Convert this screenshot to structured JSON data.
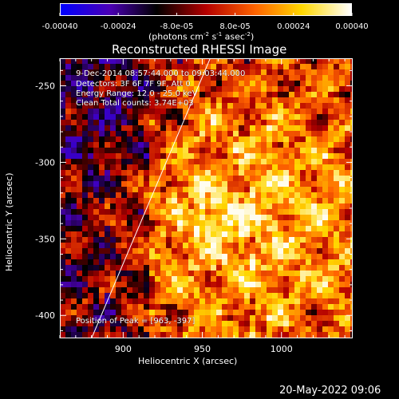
{
  "colorbar": {
    "ticks": [
      "-0.00040",
      "-0.00024",
      "-8.0e-05",
      "8.0e-05",
      "0.00024",
      "0.00040"
    ],
    "tick_values": [
      -0.0004,
      -0.00024,
      -8e-05,
      8e-05,
      0.00024,
      0.0004
    ],
    "range": [
      -0.0004,
      0.0004
    ],
    "units_prefix": "(photons cm",
    "units_exp1": "-2",
    "units_mid": " s",
    "units_exp2": "-1",
    "units_mid2": " asec",
    "units_exp3": "-2",
    "units_suffix": ")",
    "colors": [
      "#0000ff",
      "#4b00b4",
      "#000000",
      "#b40000",
      "#ff6400",
      "#ffd700",
      "#ffffff"
    ]
  },
  "title": "Reconstructed RHESSI Image",
  "annotations": {
    "time_range": "9-Dec-2014 08:57:44.000 to 09:03:44.000",
    "detectors": "Detectors: 3F 6F 7F 9F, Att 0",
    "energy": "Energy Range: 12.0 - 25.0 keV",
    "clean": "Clean     Total counts: 3.74E+03",
    "peak": "Position of Peak = [963, -397]"
  },
  "axes": {
    "xlabel": "Heliocentric X (arcsec)",
    "ylabel": "Heliocentric Y (arcsec)",
    "xticks": [
      900,
      950,
      1000
    ],
    "yticks": [
      -250,
      -300,
      -350,
      -400
    ],
    "xlim": [
      860,
      1045
    ],
    "ylim": [
      -415,
      -232
    ]
  },
  "limb": {
    "x1": 880,
    "y1": -415,
    "x2": 955,
    "y2": -232
  },
  "timestamp": "20-May-2022 09:06"
}
